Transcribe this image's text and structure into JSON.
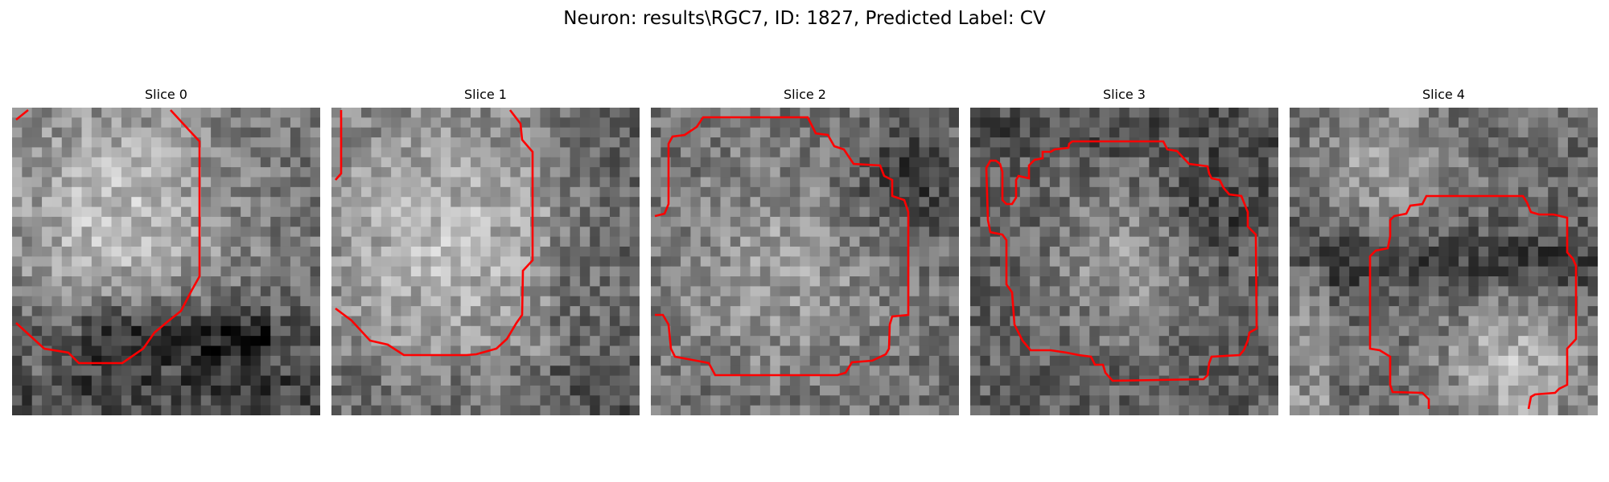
{
  "figure": {
    "title": "Neuron: results\\RGC7, ID: 1827, Predicted Label: CV",
    "contour_color": "#ff0000"
  },
  "slices": [
    {
      "title": "Slice 0"
    },
    {
      "title": "Slice 1"
    },
    {
      "title": "Slice 2"
    },
    {
      "title": "Slice 3"
    },
    {
      "title": "Slice 4"
    }
  ]
}
